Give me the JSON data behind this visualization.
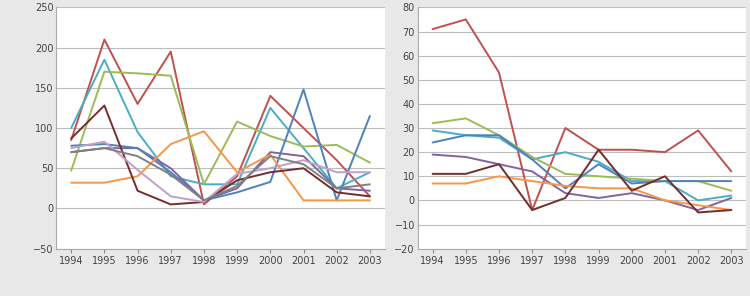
{
  "years": [
    1994,
    1995,
    1996,
    1997,
    1998,
    1999,
    2000,
    2001,
    2002,
    2003
  ],
  "left_chart": {
    "ylim": [
      -50,
      250
    ],
    "yticks": [
      -50,
      0,
      50,
      100,
      150,
      200,
      250
    ],
    "series": [
      {
        "color": "#C0504D",
        "values": [
          85,
          210,
          130,
          195,
          5,
          40,
          140,
          100,
          60,
          15
        ]
      },
      {
        "color": "#4BACC6",
        "values": [
          100,
          185,
          95,
          40,
          30,
          30,
          125,
          75,
          25,
          45
        ]
      },
      {
        "color": "#9BBB59",
        "values": [
          47,
          170,
          168,
          165,
          30,
          108,
          90,
          77,
          79,
          57
        ]
      },
      {
        "color": "#8064A2",
        "values": [
          70,
          75,
          75,
          50,
          10,
          25,
          70,
          65,
          25,
          22
        ]
      },
      {
        "color": "#4F81BD",
        "values": [
          78,
          80,
          75,
          45,
          10,
          20,
          33,
          148,
          10,
          115
        ]
      },
      {
        "color": "#F79646",
        "values": [
          32,
          32,
          40,
          80,
          96,
          45,
          67,
          10,
          10,
          10
        ]
      },
      {
        "color": "#772C2C",
        "values": [
          87,
          128,
          22,
          5,
          8,
          35,
          45,
          50,
          20,
          15
        ]
      },
      {
        "color": "#C0A0C8",
        "values": [
          75,
          83,
          48,
          15,
          8,
          43,
          50,
          60,
          45,
          45
        ]
      },
      {
        "color": "#808080",
        "values": [
          70,
          75,
          65,
          42,
          10,
          28,
          65,
          55,
          25,
          30
        ]
      }
    ]
  },
  "right_chart": {
    "ylim": [
      -20,
      80
    ],
    "yticks": [
      -20,
      -10,
      0,
      10,
      20,
      30,
      40,
      50,
      60,
      70,
      80
    ],
    "series": [
      {
        "color": "#C0504D",
        "values": [
          71,
          75,
          53,
          -4,
          30,
          21,
          21,
          20,
          29,
          12
        ]
      },
      {
        "color": "#4BACC6",
        "values": [
          29,
          27,
          26,
          17,
          20,
          16,
          8,
          8,
          0,
          2
        ]
      },
      {
        "color": "#9BBB59",
        "values": [
          32,
          34,
          27,
          18,
          11,
          10,
          9,
          8,
          8,
          4
        ]
      },
      {
        "color": "#8064A2",
        "values": [
          19,
          18,
          15,
          12,
          3,
          1,
          3,
          0,
          -4,
          1
        ]
      },
      {
        "color": "#4F81BD",
        "values": [
          24,
          27,
          27,
          17,
          5,
          15,
          7,
          8,
          8,
          8
        ]
      },
      {
        "color": "#F79646",
        "values": [
          7,
          7,
          10,
          8,
          6,
          5,
          5,
          0,
          -2,
          -4
        ]
      },
      {
        "color": "#772C2C",
        "values": [
          11,
          11,
          15,
          -4,
          1,
          21,
          4,
          10,
          -5,
          -4
        ]
      }
    ]
  },
  "outer_bg": "#E8E8E8",
  "plot_bg_color": "#FFFFFF",
  "grid_color": "#BEBEBE",
  "linewidth": 1.4,
  "tick_fontsize": 7
}
